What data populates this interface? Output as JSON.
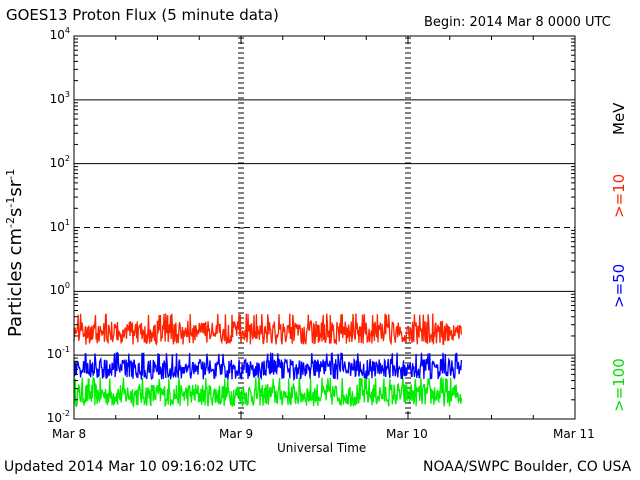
{
  "header": {
    "title": "GOES13 Proton Flux (5 minute data)",
    "begin": "Begin: 2014 Mar 8 0000 UTC"
  },
  "footer": {
    "updated": "Updated 2014 Mar 10 09:16:02 UTC",
    "credit": "NOAA/SWPC Boulder, CO USA"
  },
  "chart_data": {
    "type": "line",
    "title": "GOES13 Proton Flux (5 minute data)",
    "xlabel": "Universal Time",
    "ylabel": "Particles cm-2s-1sr-1",
    "ylabel_parts": {
      "base": "Particles cm",
      "e1": "-2",
      "mid1": "s",
      "e2": "-1",
      "mid2": "sr",
      "e3": "-1"
    },
    "y_scale": "log",
    "ylim": [
      0.01,
      10000
    ],
    "y_ticks": [
      {
        "base": "10",
        "exp": "4"
      },
      {
        "base": "10",
        "exp": "3"
      },
      {
        "base": "10",
        "exp": "2"
      },
      {
        "base": "10",
        "exp": "1"
      },
      {
        "base": "10",
        "exp": "0"
      },
      {
        "base": "10",
        "exp": "-1"
      },
      {
        "base": "10",
        "exp": "-2"
      }
    ],
    "x_tick_labels": [
      "Mar 8",
      "Mar 9",
      "Mar 10",
      "Mar 11"
    ],
    "xlim_days": [
      0,
      3
    ],
    "energy_unit": "MeV",
    "series": [
      {
        "name": ">=10",
        "color": "#ff2200",
        "level_low": 0.12,
        "level_high": 0.45,
        "x_end_days": 2.32
      },
      {
        "name": ">=50",
        "color": "#0000ff",
        "level_low": 0.035,
        "level_high": 0.11,
        "x_end_days": 2.32
      },
      {
        "name": ">=100",
        "color": "#00ee00",
        "level_low": 0.013,
        "level_high": 0.045,
        "x_end_days": 2.32
      }
    ],
    "colors": {
      "frame": "#000000",
      "background": "#ffffff"
    }
  }
}
